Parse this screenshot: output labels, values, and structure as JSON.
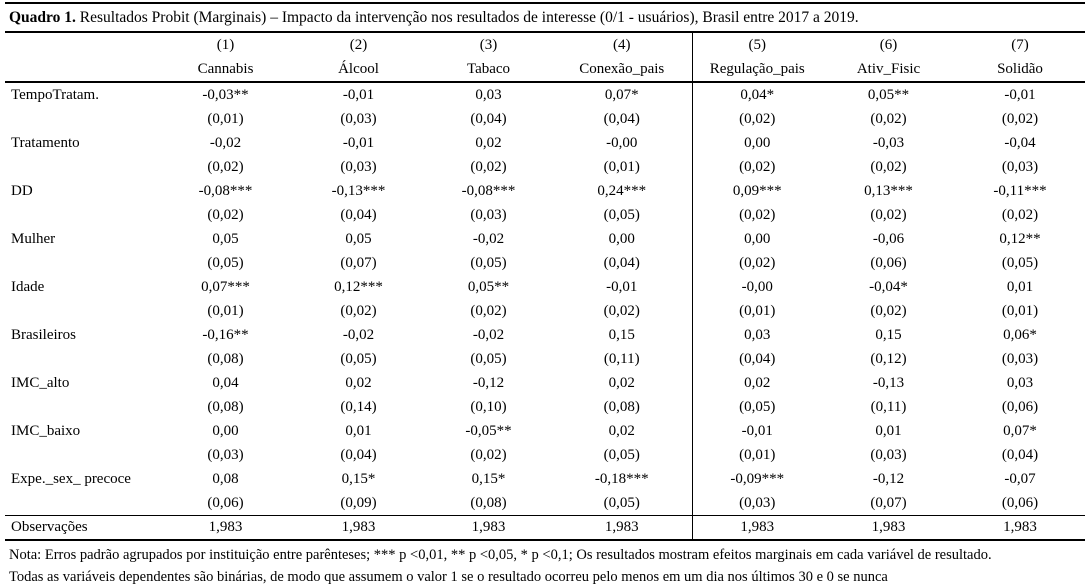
{
  "title": {
    "label": "Quadro 1.",
    "text": " Resultados Probit (Marginais) – Impacto da intervenção nos resultados de interesse (0/1 - usuários), Brasil entre 2017 a 2019."
  },
  "table": {
    "column_numbers": [
      "(1)",
      "(2)",
      "(3)",
      "(4)",
      "(5)",
      "(6)",
      "(7)"
    ],
    "column_names": [
      "Cannabis",
      "Álcool",
      "Tabaco",
      "Conexão_pais",
      "Regulação_pais",
      "Ativ_Fisic",
      "Solidão"
    ],
    "rows": [
      {
        "label": "TempoTratam.",
        "coef": [
          "-0,03**",
          "-0,01",
          "0,03",
          "0,07*",
          "0,04*",
          "0,05**",
          "-0,01"
        ],
        "se": [
          "(0,01)",
          "(0,03)",
          "(0,04)",
          "(0,04)",
          "(0,02)",
          "(0,02)",
          "(0,02)"
        ]
      },
      {
        "label": "Tratamento",
        "coef": [
          "-0,02",
          "-0,01",
          "0,02",
          "-0,00",
          "0,00",
          "-0,03",
          "-0,04"
        ],
        "se": [
          "(0,02)",
          "(0,03)",
          "(0,02)",
          "(0,01)",
          "(0,02)",
          "(0,02)",
          "(0,03)"
        ]
      },
      {
        "label": "DD",
        "coef": [
          "-0,08***",
          "-0,13***",
          "-0,08***",
          "0,24***",
          "0,09***",
          "0,13***",
          "-0,11***"
        ],
        "se": [
          "(0,02)",
          "(0,04)",
          "(0,03)",
          "(0,05)",
          "(0,02)",
          "(0,02)",
          "(0,02)"
        ]
      },
      {
        "label": "Mulher",
        "coef": [
          "0,05",
          "0,05",
          "-0,02",
          "0,00",
          "0,00",
          "-0,06",
          "0,12**"
        ],
        "se": [
          "(0,05)",
          "(0,07)",
          "(0,05)",
          "(0,04)",
          "(0,02)",
          "(0,06)",
          "(0,05)"
        ]
      },
      {
        "label": "Idade",
        "coef": [
          "0,07***",
          "0,12***",
          "0,05**",
          "-0,01",
          "-0,00",
          "-0,04*",
          "0,01"
        ],
        "se": [
          "(0,01)",
          "(0,02)",
          "(0,02)",
          "(0,02)",
          "(0,01)",
          "(0,02)",
          "(0,01)"
        ]
      },
      {
        "label": "Brasileiros",
        "coef": [
          "-0,16**",
          "-0,02",
          "-0,02",
          "0,15",
          "0,03",
          "0,15",
          "0,06*"
        ],
        "se": [
          "(0,08)",
          "(0,05)",
          "(0,05)",
          "(0,11)",
          "(0,04)",
          "(0,12)",
          "(0,03)"
        ]
      },
      {
        "label": "IMC_alto",
        "coef": [
          "0,04",
          "0,02",
          "-0,12",
          "0,02",
          "0,02",
          "-0,13",
          "0,03"
        ],
        "se": [
          "(0,08)",
          "(0,14)",
          "(0,10)",
          "(0,08)",
          "(0,05)",
          "(0,11)",
          "(0,06)"
        ]
      },
      {
        "label": "IMC_baixo",
        "coef": [
          "0,00",
          "0,01",
          "-0,05**",
          "0,02",
          "-0,01",
          "0,01",
          "0,07*"
        ],
        "se": [
          "(0,03)",
          "(0,04)",
          "(0,02)",
          "(0,05)",
          "(0,01)",
          "(0,03)",
          "(0,04)"
        ]
      },
      {
        "label": "Expe._sex_ precoce",
        "coef": [
          "0,08",
          "0,15*",
          "0,15*",
          "-0,18***",
          "-0,09***",
          "-0,12",
          "-0,07"
        ],
        "se": [
          "(0,06)",
          "(0,09)",
          "(0,08)",
          "(0,05)",
          "(0,03)",
          "(0,07)",
          "(0,06)"
        ]
      }
    ],
    "observations": {
      "label": "Observações",
      "values": [
        "1,983",
        "1,983",
        "1,983",
        "1,983",
        "1,983",
        "1,983",
        "1,983"
      ]
    }
  },
  "notes": {
    "line1": "Nota: Erros padrão agrupados por instituição entre parênteses; *** p <0,01, ** p <0,05, * p <0,1; Os resultados mostram efeitos marginais em cada variável de resultado.",
    "line2": "Todas as variáveis dependentes são binárias, de modo que assumem o valor 1 se o resultado ocorreu pelo menos em um dia nos últimos 30 e 0 se nunca"
  }
}
